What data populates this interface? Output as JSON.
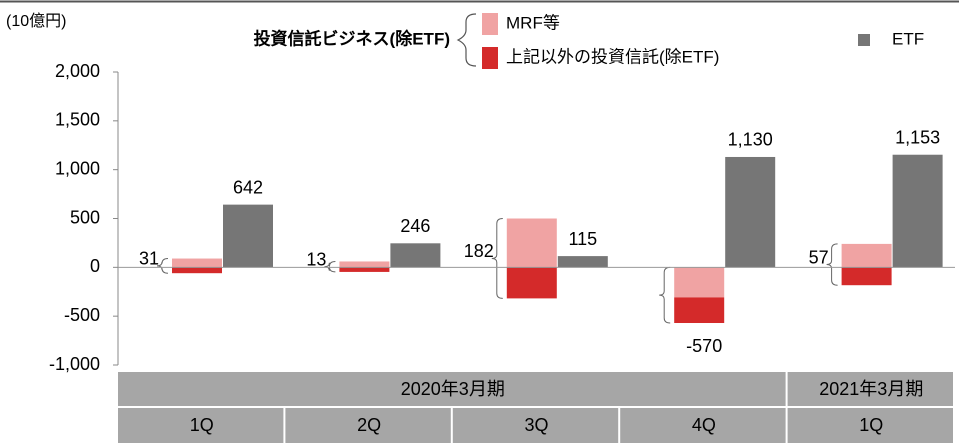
{
  "chart_data": {
    "type": "bar",
    "y_label": "(10億円)",
    "legend_title": "投資信託ビジネス(除ETF)",
    "categories": [
      "1Q",
      "2Q",
      "3Q",
      "4Q",
      "1Q"
    ],
    "periods": [
      {
        "label": "2020年3月期",
        "span": 4
      },
      {
        "label": "2021年3月期",
        "span": 1
      }
    ],
    "series": [
      {
        "name": "MRF等",
        "color": "#f0a3a3",
        "values": [
          90,
          60,
          500,
          -308,
          240
        ],
        "group": "stack"
      },
      {
        "name": "上記以外の投資信託(除ETF)",
        "color": "#d42a2a",
        "values": [
          -60,
          -47,
          -318,
          -262,
          -183
        ],
        "group": "stack"
      },
      {
        "name": "ETF",
        "color": "#767676",
        "values": [
          642,
          246,
          115,
          1130,
          1153
        ],
        "value_labels": [
          "642",
          "246",
          "115",
          "1,130",
          "1,153"
        ]
      }
    ],
    "totals": [
      31,
      13,
      182,
      -570,
      57
    ],
    "ylim": [
      -1000,
      2000
    ],
    "yticks": [
      {
        "value": -1000,
        "label": "-1,000"
      },
      {
        "value": -500,
        "label": "-500"
      },
      0,
      500,
      {
        "value": 1000,
        "label": "1,000"
      },
      {
        "value": 1500,
        "label": "1,500"
      },
      {
        "value": 2000,
        "label": "2,000"
      }
    ]
  }
}
